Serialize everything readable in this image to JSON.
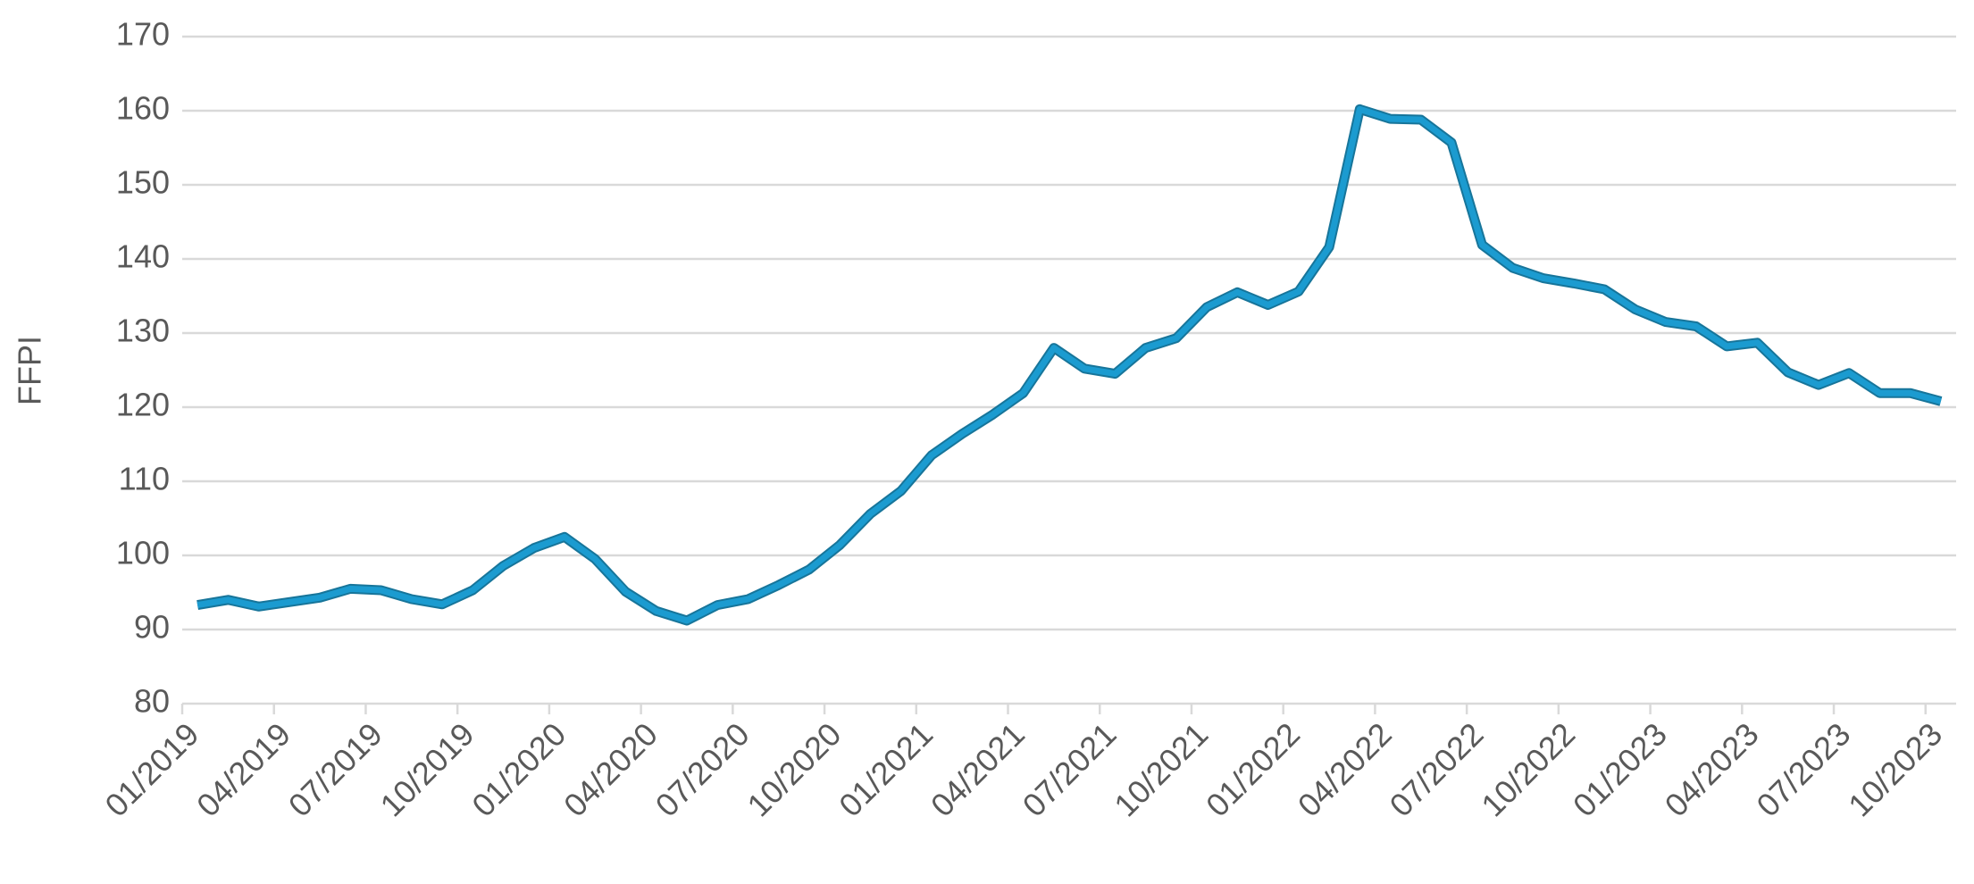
{
  "chart_data": {
    "type": "line",
    "y_label": "FFPI",
    "categories": [
      "01/2019",
      null,
      null,
      "04/2019",
      null,
      null,
      "07/2019",
      null,
      null,
      "10/2019",
      null,
      null,
      "01/2020",
      null,
      null,
      "04/2020",
      null,
      null,
      "07/2020",
      null,
      null,
      "10/2020",
      null,
      null,
      "01/2021",
      null,
      null,
      "04/2021",
      null,
      null,
      "07/2021",
      null,
      null,
      "10/2021",
      null,
      null,
      "01/2022",
      null,
      null,
      "04/2022",
      null,
      null,
      "07/2022",
      null,
      null,
      "10/2022",
      null,
      null,
      "01/2023",
      null,
      null,
      "04/2023",
      null,
      null,
      "07/2023",
      null,
      null,
      "10/2023"
    ],
    "values": [
      93.3,
      94.0,
      93.1,
      93.7,
      94.3,
      95.5,
      95.3,
      94.1,
      93.4,
      95.3,
      98.6,
      101.0,
      102.5,
      99.5,
      95.1,
      92.5,
      91.2,
      93.3,
      94.1,
      96.0,
      98.1,
      101.4,
      105.6,
      108.7,
      113.5,
      116.4,
      119.0,
      121.9,
      128.0,
      125.2,
      124.5,
      128.0,
      129.3,
      133.5,
      135.5,
      133.8,
      135.6,
      141.6,
      160.2,
      158.9,
      158.8,
      155.7,
      141.9,
      138.8,
      137.4,
      136.7,
      135.9,
      133.2,
      131.5,
      130.9,
      128.2,
      128.7,
      124.7,
      123.0,
      124.6,
      121.9,
      121.9,
      120.8
    ],
    "color": "#1b9bd0",
    "ylim": [
      80,
      170
    ],
    "yticks": [
      80,
      90,
      100,
      110,
      120,
      130,
      140,
      150,
      160,
      170
    ],
    "grid": true
  }
}
